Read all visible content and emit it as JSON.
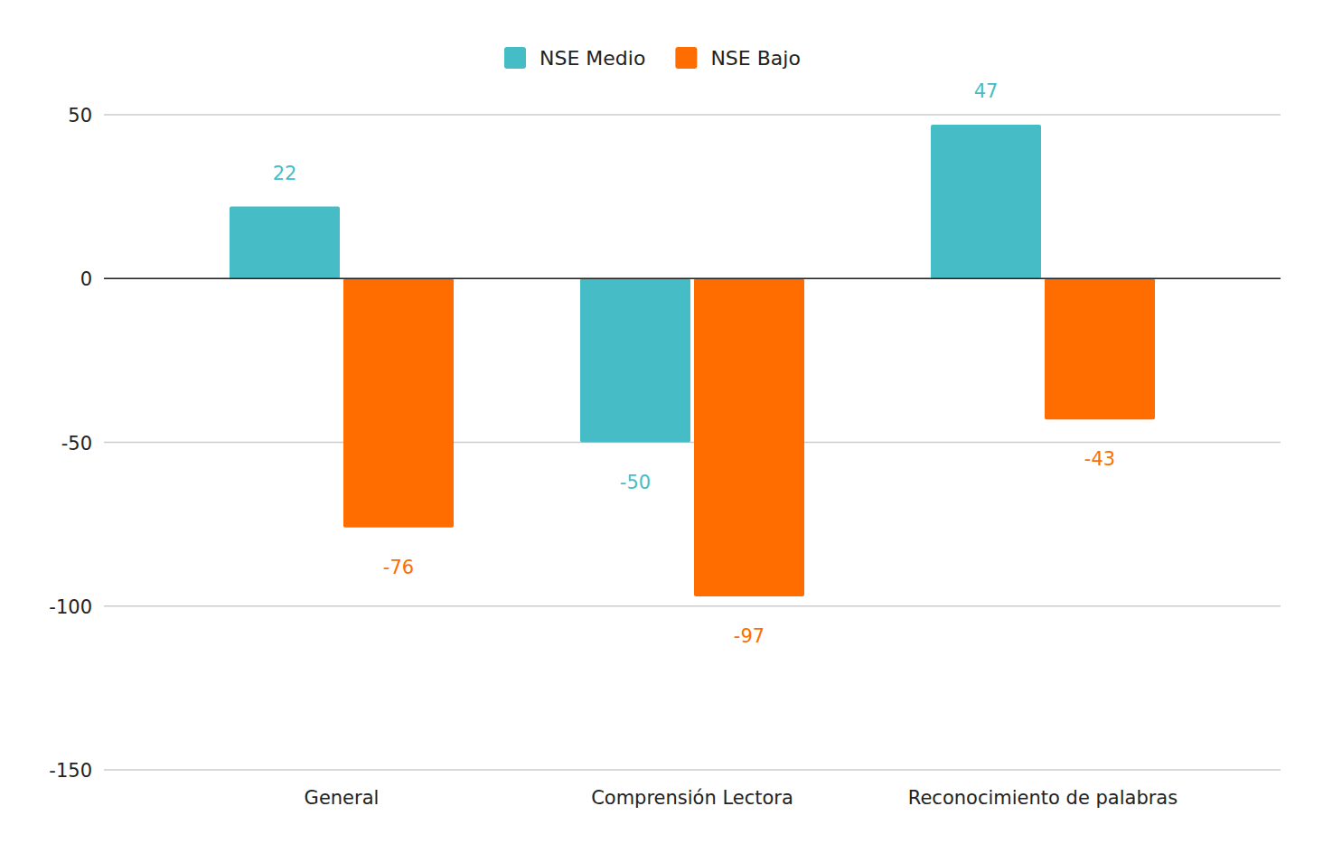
{
  "chart_data": {
    "type": "bar",
    "categories": [
      "General",
      "Comprensión Lectora",
      "Reconocimiento de palabras"
    ],
    "series": [
      {
        "name": "NSE Medio",
        "color": "#46bdc6",
        "values": [
          22,
          -50,
          47
        ]
      },
      {
        "name": "NSE Bajo",
        "color": "#ff6d01",
        "values": [
          -76,
          -97,
          -43
        ]
      }
    ],
    "ylim": [
      -150,
      50
    ],
    "yticks": [
      -150,
      -100,
      -50,
      0,
      50
    ],
    "grid": true,
    "legend": "top",
    "data_labels": true
  }
}
